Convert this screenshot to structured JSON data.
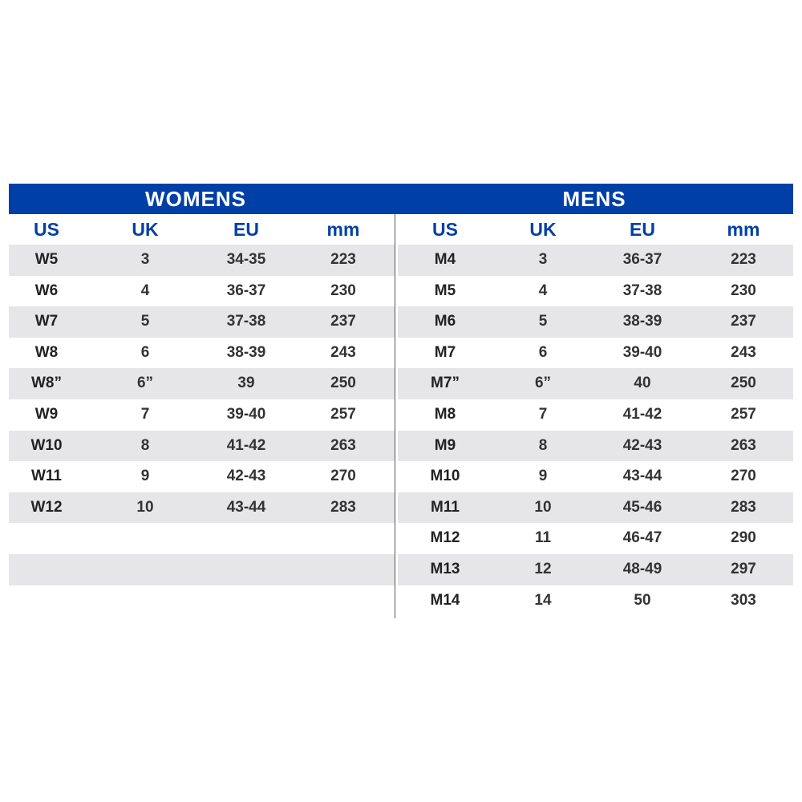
{
  "womens": {
    "title": "WOMENS",
    "headers": [
      "US",
      "UK",
      "EU",
      "mm"
    ],
    "rows": [
      [
        "W5",
        "3",
        "34-35",
        "223"
      ],
      [
        "W6",
        "4",
        "36-37",
        "230"
      ],
      [
        "W7",
        "5",
        "37-38",
        "237"
      ],
      [
        "W8",
        "6",
        "38-39",
        "243"
      ],
      [
        "W8”",
        "6”",
        "39",
        "250"
      ],
      [
        "W9",
        "7",
        "39-40",
        "257"
      ],
      [
        "W10",
        "8",
        "41-42",
        "263"
      ],
      [
        "W11",
        "9",
        "42-43",
        "270"
      ],
      [
        "W12",
        "10",
        "43-44",
        "283"
      ]
    ]
  },
  "mens": {
    "title": "MENS",
    "headers": [
      "US",
      "UK",
      "EU",
      "mm"
    ],
    "rows": [
      [
        "M4",
        "3",
        "36-37",
        "223"
      ],
      [
        "M5",
        "4",
        "37-38",
        "230"
      ],
      [
        "M6",
        "5",
        "38-39",
        "237"
      ],
      [
        "M7",
        "6",
        "39-40",
        "243"
      ],
      [
        "M7”",
        "6”",
        "40",
        "250"
      ],
      [
        "M8",
        "7",
        "41-42",
        "257"
      ],
      [
        "M9",
        "8",
        "42-43",
        "263"
      ],
      [
        "M10",
        "9",
        "43-44",
        "270"
      ],
      [
        "M11",
        "10",
        "45-46",
        "283"
      ],
      [
        "M12",
        "11",
        "46-47",
        "290"
      ],
      [
        "M13",
        "12",
        "48-49",
        "297"
      ],
      [
        "M14",
        "14",
        "50",
        "303"
      ]
    ]
  },
  "colors": {
    "header_blue": "#0040a6",
    "stripe": "#e6e5e7",
    "text": "#333333"
  }
}
